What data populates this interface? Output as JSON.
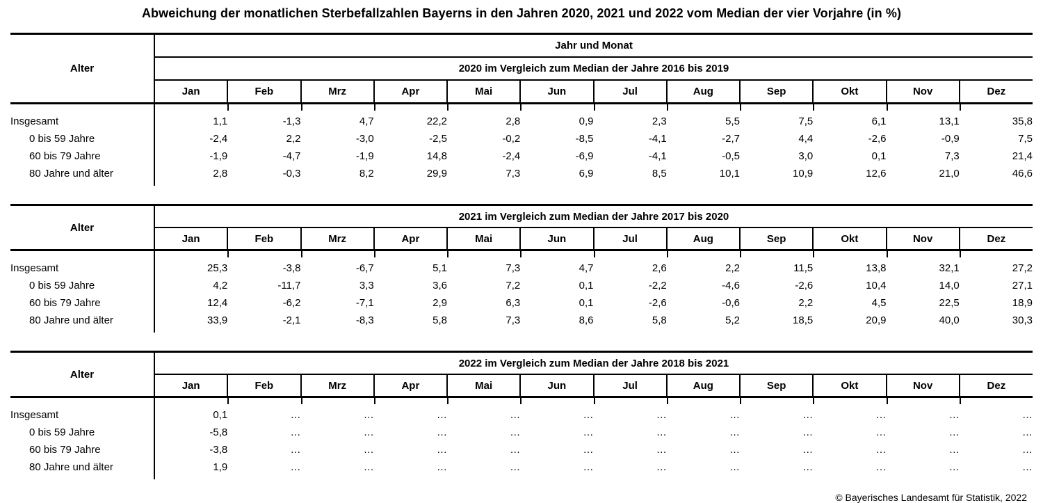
{
  "title": "Abweichung der monatlichen Sterbefallzahlen Bayerns in den Jahren 2020, 2021 und 2022 vom Median der vier Vorjahre (in %)",
  "footer": "© Bayerisches Landesamt für Statistik, 2022",
  "alter_label": "Alter",
  "jahr_und_monat_label": "Jahr und Monat",
  "months": [
    "Jan",
    "Feb",
    "Mrz",
    "Apr",
    "Mai",
    "Jun",
    "Jul",
    "Aug",
    "Sep",
    "Okt",
    "Nov",
    "Dez"
  ],
  "colors": {
    "text": "#000000",
    "background": "#ffffff",
    "border": "#000000"
  },
  "tables": [
    {
      "period_header": "2020 im Vergleich zum Median der Jahre 2016 bis 2019",
      "rows": [
        {
          "label": "Insgesamt",
          "values": [
            "1,1",
            "-1,3",
            "4,7",
            "22,2",
            "2,8",
            "0,9",
            "2,3",
            "5,5",
            "7,5",
            "6,1",
            "13,1",
            "35,8"
          ]
        },
        {
          "label": "0 bis 59 Jahre",
          "values": [
            "-2,4",
            "2,2",
            "-3,0",
            "-2,5",
            "-0,2",
            "-8,5",
            "-4,1",
            "-2,7",
            "4,4",
            "-2,6",
            "-0,9",
            "7,5"
          ]
        },
        {
          "label": "60 bis 79 Jahre",
          "values": [
            "-1,9",
            "-4,7",
            "-1,9",
            "14,8",
            "-2,4",
            "-6,9",
            "-4,1",
            "-0,5",
            "3,0",
            "0,1",
            "7,3",
            "21,4"
          ]
        },
        {
          "label": "80 Jahre und älter",
          "values": [
            "2,8",
            "-0,3",
            "8,2",
            "29,9",
            "7,3",
            "6,9",
            "8,5",
            "10,1",
            "10,9",
            "12,6",
            "21,0",
            "46,6"
          ]
        }
      ]
    },
    {
      "period_header": "2021 im Vergleich zum Median der Jahre 2017 bis 2020",
      "rows": [
        {
          "label": "Insgesamt",
          "values": [
            "25,3",
            "-3,8",
            "-6,7",
            "5,1",
            "7,3",
            "4,7",
            "2,6",
            "2,2",
            "11,5",
            "13,8",
            "32,1",
            "27,2"
          ]
        },
        {
          "label": "0 bis 59 Jahre",
          "values": [
            "4,2",
            "-11,7",
            "3,3",
            "3,6",
            "7,2",
            "0,1",
            "-2,2",
            "-4,6",
            "-2,6",
            "10,4",
            "14,0",
            "27,1"
          ]
        },
        {
          "label": "60 bis 79 Jahre",
          "values": [
            "12,4",
            "-6,2",
            "-7,1",
            "2,9",
            "6,3",
            "0,1",
            "-2,6",
            "-0,6",
            "2,2",
            "4,5",
            "22,5",
            "18,9"
          ]
        },
        {
          "label": "80 Jahre und älter",
          "values": [
            "33,9",
            "-2,1",
            "-8,3",
            "5,8",
            "7,3",
            "8,6",
            "5,8",
            "5,2",
            "18,5",
            "20,9",
            "40,0",
            "30,3"
          ]
        }
      ]
    },
    {
      "period_header": "2022 im Vergleich zum Median der Jahre 2018 bis 2021",
      "rows": [
        {
          "label": "Insgesamt",
          "values": [
            "0,1",
            "…",
            "…",
            "…",
            "…",
            "…",
            "…",
            "…",
            "…",
            "…",
            "…",
            "…"
          ]
        },
        {
          "label": "0 bis 59 Jahre",
          "values": [
            "-5,8",
            "…",
            "…",
            "…",
            "…",
            "…",
            "…",
            "…",
            "…",
            "…",
            "…",
            "…"
          ]
        },
        {
          "label": "60 bis 79 Jahre",
          "values": [
            "-3,8",
            "…",
            "…",
            "…",
            "…",
            "…",
            "…",
            "…",
            "…",
            "…",
            "…",
            "…"
          ]
        },
        {
          "label": "80 Jahre und älter",
          "values": [
            "1,9",
            "…",
            "…",
            "…",
            "…",
            "…",
            "…",
            "…",
            "…",
            "…",
            "…",
            "…"
          ]
        }
      ]
    }
  ]
}
